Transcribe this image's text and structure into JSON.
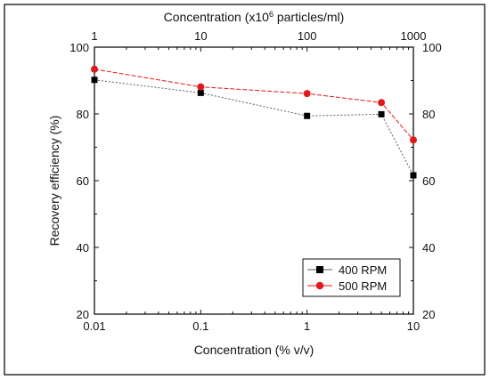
{
  "chart_data": {
    "type": "line",
    "xscale": "log",
    "xlabel": "Concentration (% v/v)",
    "ylabel": "Recovery efficiency (%)",
    "top_xlabel": {
      "prefix": "Concentration (x10",
      "sup": "6",
      "suffix": " particles/ml)"
    },
    "xlim": [
      0.01,
      10
    ],
    "ylim": [
      20,
      100
    ],
    "x_ticks": [
      0.01,
      0.1,
      1,
      10
    ],
    "x_tick_labels": [
      "0.01",
      "0.1",
      "1",
      "10"
    ],
    "top_x_ticks": [
      1,
      10,
      100,
      1000
    ],
    "top_x_tick_labels": [
      "1",
      "10",
      "100",
      "1000"
    ],
    "y_ticks": [
      20,
      40,
      60,
      80,
      100
    ],
    "y_tick_labels": [
      "20",
      "40",
      "60",
      "80",
      "100"
    ],
    "right_y_tick_labels": [
      "20",
      "40",
      "60",
      "80",
      "100"
    ],
    "grid": false,
    "legend_position": "bottom-right",
    "series": [
      {
        "name": "400 RPM",
        "marker": "square",
        "color": "#000000",
        "line_color": "#5a5a6e",
        "x": [
          0.01,
          0.1,
          1,
          5,
          10
        ],
        "y": [
          90.2,
          86.3,
          79.4,
          79.9,
          61.6
        ]
      },
      {
        "name": "500 RPM",
        "marker": "circle",
        "color": "#e0191a",
        "line_color": "#e0191a",
        "x": [
          0.01,
          0.1,
          1,
          5,
          10
        ],
        "y": [
          93.4,
          88.1,
          86.1,
          83.4,
          72.2
        ]
      }
    ]
  }
}
